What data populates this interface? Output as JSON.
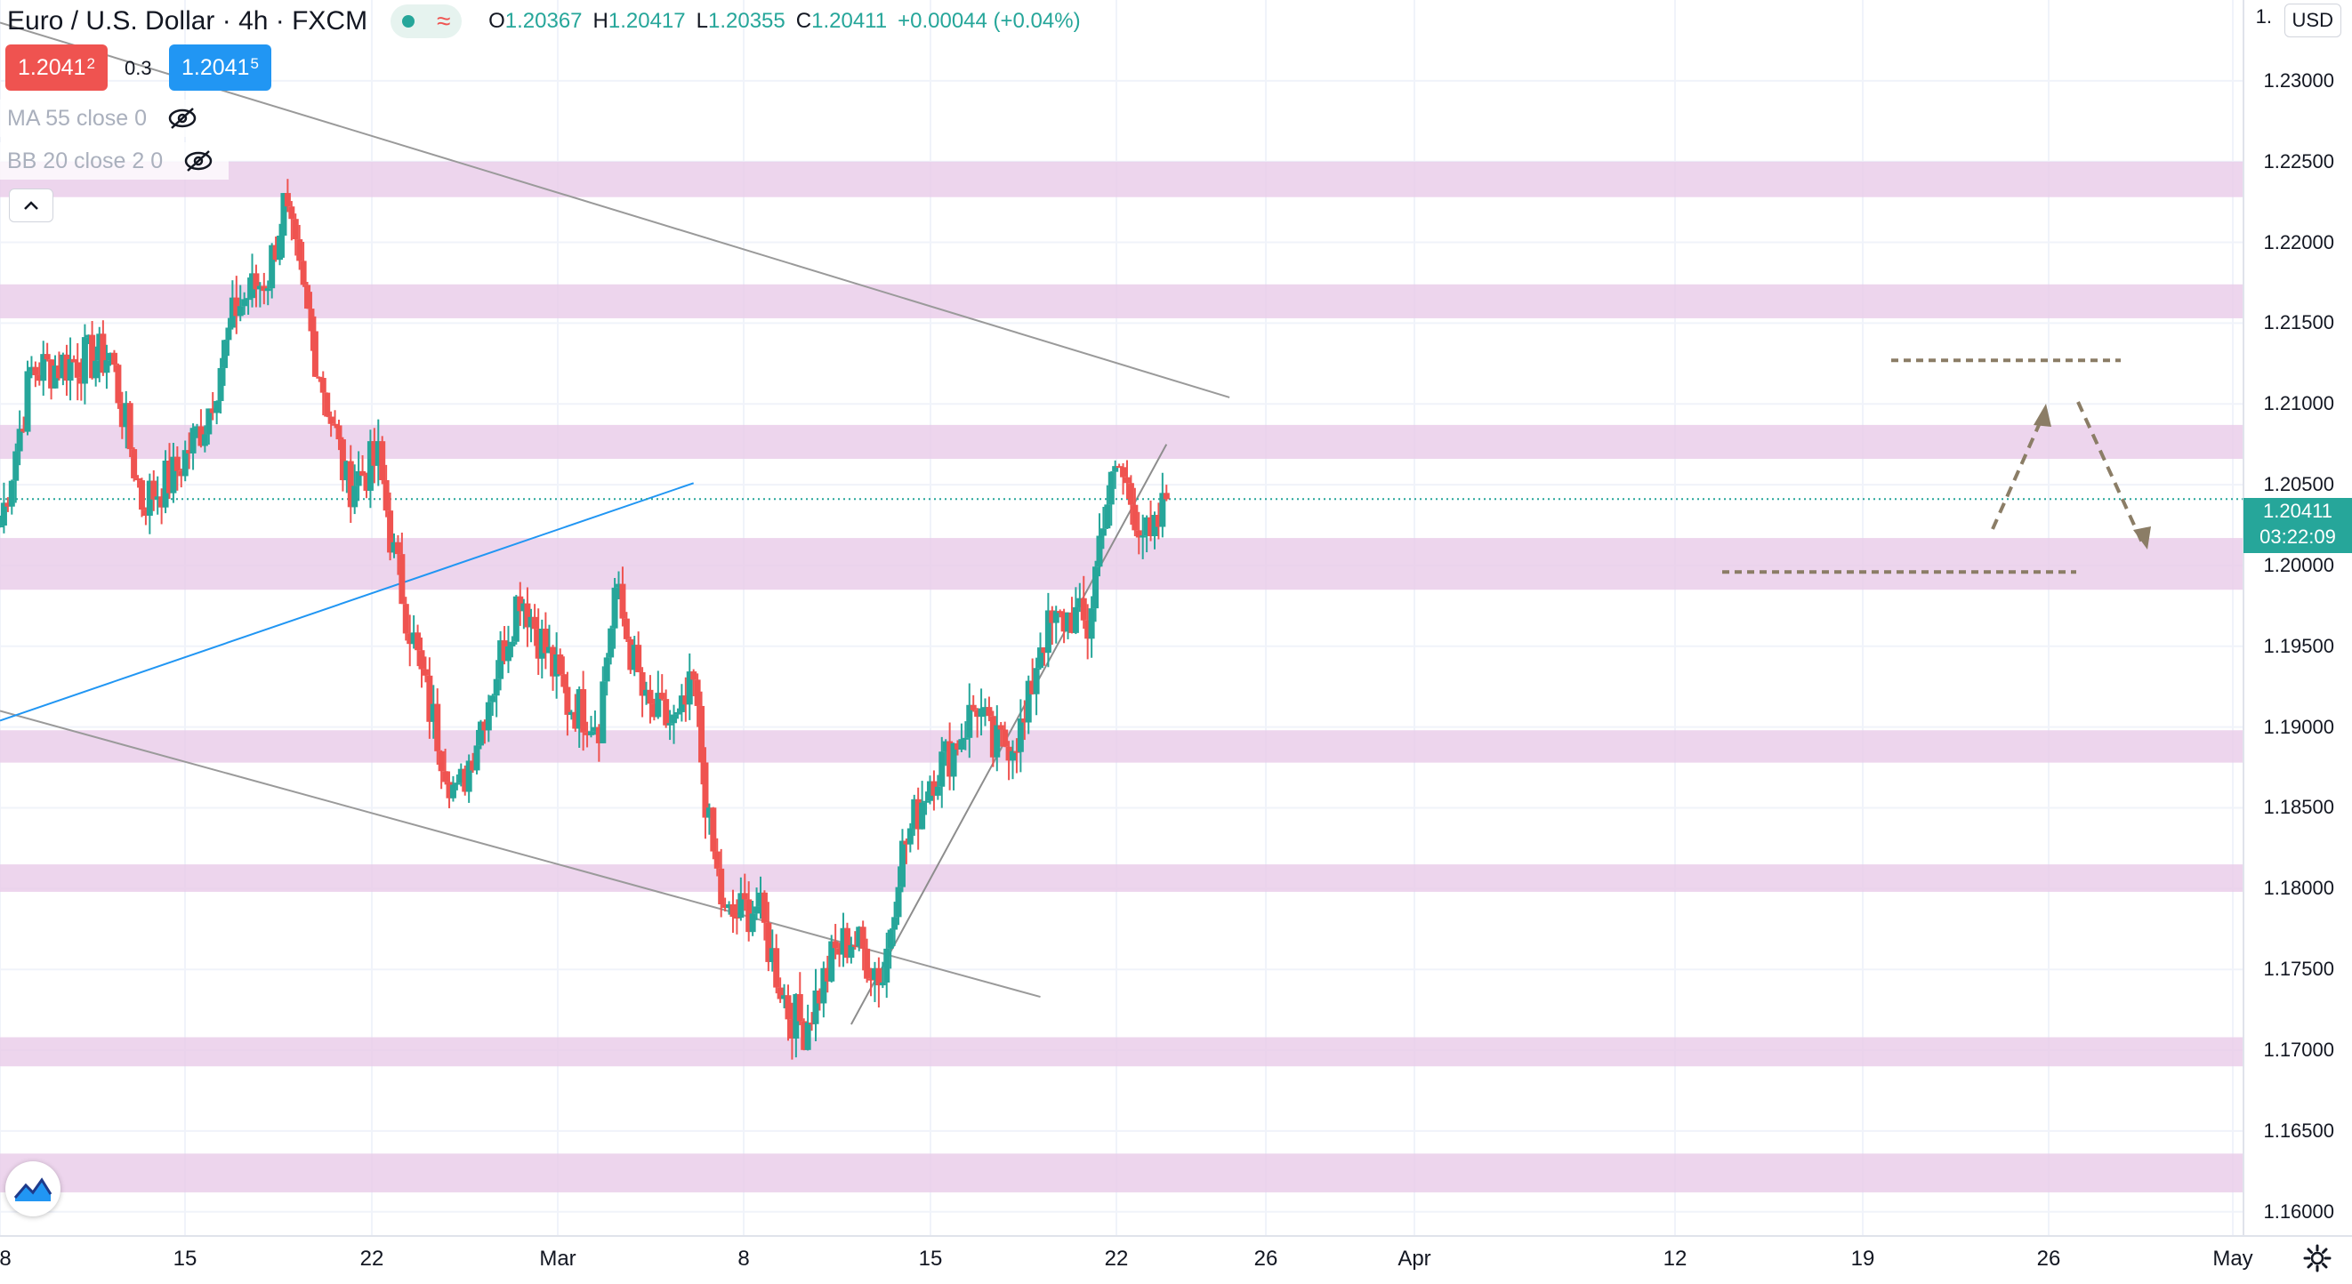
{
  "legend": {
    "title": "Euro / U.S. Dollar · 4h · FXCM",
    "ohlc": [
      {
        "key": "O",
        "value": "1.20367"
      },
      {
        "key": "H",
        "value": "1.20417"
      },
      {
        "key": "L",
        "value": "1.20355"
      },
      {
        "key": "C",
        "value": "1.20411"
      },
      {
        "key": "",
        "value": "+0.00044 (+0.04%)"
      }
    ],
    "sell_price": "1.2041",
    "sell_price_small": "2",
    "spread": "0.3",
    "buy_price": "1.2041",
    "buy_price_small": "5",
    "indicators": [
      {
        "label": "MA 55 close 0"
      },
      {
        "label": "BB 20 close 2 0"
      }
    ]
  },
  "price_axis": {
    "currency": "USD",
    "top_label": "1.",
    "last_price": "1.20411",
    "countdown": "03:22:09"
  },
  "colors": {
    "up": "#26a69a",
    "down": "#ef5350",
    "zone": "#e8cbe8",
    "trendline": "#9a9a9a",
    "blue_line": "#2196f3",
    "projection": "#8b7d66"
  },
  "icons": [
    "eye-off-icon",
    "chevron-up-icon",
    "tradingview-logo-icon",
    "gear-icon",
    "status-dot-icon",
    "wave-icon"
  ],
  "chart_data": {
    "type": "candlestick",
    "symbol": "EURUSD",
    "timeframe": "4h",
    "ylim": [
      1.1585,
      1.235
    ],
    "y_ticks": [
      1.16,
      1.165,
      1.17,
      1.175,
      1.18,
      1.185,
      1.19,
      1.195,
      1.2,
      1.205,
      1.21,
      1.215,
      1.22,
      1.225,
      1.23
    ],
    "x_labels": [
      "8",
      "15",
      "22",
      "Mar",
      "8",
      "15",
      "22",
      "26",
      "Apr",
      "12",
      "19",
      "26",
      "May"
    ],
    "support_resistance_zones": [
      [
        1.2228,
        1.225
      ],
      [
        1.2153,
        1.2174
      ],
      [
        1.2066,
        1.2087
      ],
      [
        1.1985,
        1.2017
      ],
      [
        1.1878,
        1.1898
      ],
      [
        1.1798,
        1.1815
      ],
      [
        1.169,
        1.1708
      ],
      [
        1.1612,
        1.1636
      ]
    ],
    "trendlines": [
      {
        "name": "upper-channel",
        "from": [
          "Feb 8",
          1.2336
        ],
        "to": [
          "Apr 27",
          1.2104
        ]
      },
      {
        "name": "lower-channel",
        "from": [
          "Feb 8",
          1.191
        ],
        "to": [
          "Apr 15",
          1.1733
        ]
      },
      {
        "name": "blue-trendline",
        "from": [
          "Feb 8",
          1.1904
        ],
        "to": [
          "Mar 24",
          1.2051
        ]
      },
      {
        "name": "rising-support",
        "from": [
          "Apr 3",
          1.1716
        ],
        "to": [
          "Apr 23",
          1.2075
        ]
      }
    ],
    "horizontal_levels": [
      1.2127,
      1.1996
    ],
    "last_price": 1.20411,
    "candles_anchor_closes": [
      [
        "Feb 8",
        1.2025
      ],
      [
        "Feb 10",
        1.212
      ],
      [
        "Feb 12",
        1.2125
      ],
      [
        "Feb 15",
        1.213
      ],
      [
        "Feb 17",
        1.204
      ],
      [
        "Feb 19",
        1.2055
      ],
      [
        "Feb 21",
        1.209
      ],
      [
        "Feb 23",
        1.216
      ],
      [
        "Feb 25",
        1.218
      ],
      [
        "Feb 26",
        1.2222
      ],
      [
        "Feb 28",
        1.2132
      ],
      [
        "Mar 2",
        1.205
      ],
      [
        "Mar 4",
        1.2065
      ],
      [
        "Mar 5",
        1.2005
      ],
      [
        "Mar 7",
        1.192
      ],
      [
        "Mar 9",
        1.1855
      ],
      [
        "Mar 11",
        1.192
      ],
      [
        "Mar 13",
        1.1985
      ],
      [
        "Mar 16",
        1.1915
      ],
      [
        "Mar 18",
        1.1905
      ],
      [
        "Mar 19",
        1.1985
      ],
      [
        "Mar 21",
        1.191
      ],
      [
        "Mar 23",
        1.19
      ],
      [
        "Mar 24",
        1.1925
      ],
      [
        "Mar 25",
        1.1835
      ],
      [
        "Mar 26",
        1.178
      ],
      [
        "Mar 28",
        1.179
      ],
      [
        "Mar 30",
        1.1725
      ],
      [
        "Mar 31",
        1.1715
      ],
      [
        "Apr 2",
        1.176
      ],
      [
        "Apr 3",
        1.177
      ],
      [
        "Apr 5",
        1.1745
      ],
      [
        "Apr 6",
        1.1815
      ],
      [
        "Apr 8",
        1.187
      ],
      [
        "Apr 9",
        1.188
      ],
      [
        "Apr 11",
        1.1915
      ],
      [
        "Apr 12",
        1.1885
      ],
      [
        "Apr 14",
        1.19
      ],
      [
        "Apr 15",
        1.1955
      ],
      [
        "Apr 17",
        1.197
      ],
      [
        "Apr 18",
        1.196
      ],
      [
        "Apr 19",
        1.2035
      ],
      [
        "Apr 20",
        1.206
      ],
      [
        "Apr 21",
        1.2035
      ],
      [
        "Apr 22",
        1.201
      ],
      [
        "Apr 23",
        1.2041
      ]
    ]
  }
}
